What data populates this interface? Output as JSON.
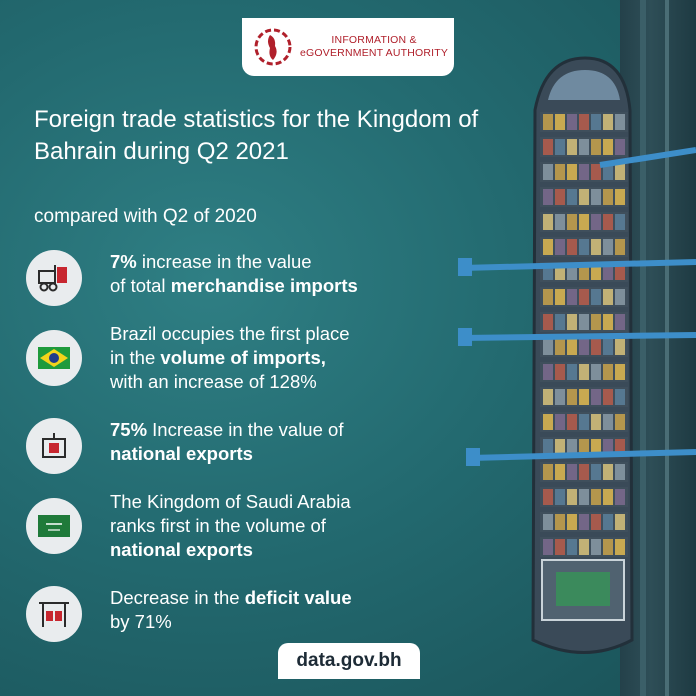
{
  "logo": {
    "line1": "INFORMATION &",
    "line2": "eGOVERNMENT AUTHORITY",
    "icon": "bahrain-map-logo"
  },
  "title": "Foreign trade statistics for the Kingdom of Bahrain during Q2 2021",
  "subtitle": "compared with Q2 of 2020",
  "items": [
    {
      "icon": "forklift-icon",
      "lines": [
        [
          {
            "t": "7%",
            "b": true
          },
          {
            "t": " increase in the value",
            "b": false
          }
        ],
        [
          {
            "t": "of total ",
            "b": false
          },
          {
            "t": "merchandise imports",
            "b": true
          }
        ]
      ]
    },
    {
      "icon": "brazil-flag-icon",
      "lines": [
        [
          {
            "t": "Brazil occupies the first place",
            "b": false
          }
        ],
        [
          {
            "t": "in the ",
            "b": false
          },
          {
            "t": "volume of imports,",
            "b": true
          }
        ],
        [
          {
            "t": "with an increase of 128%",
            "b": false
          }
        ]
      ]
    },
    {
      "icon": "export-container-icon",
      "lines": [
        [
          {
            "t": "75%",
            "b": true
          },
          {
            "t": " Increase in the value of",
            "b": false
          }
        ],
        [
          {
            "t": "national exports",
            "b": true
          }
        ]
      ]
    },
    {
      "icon": "saudi-flag-icon",
      "lines": [
        [
          {
            "t": "The Kingdom of Saudi Arabia",
            "b": false
          }
        ],
        [
          {
            "t": "ranks first in the volume of",
            "b": false
          }
        ],
        [
          {
            "t": "national exports",
            "b": true
          }
        ]
      ]
    },
    {
      "icon": "crane-containers-icon",
      "lines": [
        [
          {
            "t": "Decrease in the ",
            "b": false
          },
          {
            "t": "deficit value",
            "b": true
          }
        ],
        [
          {
            "t": "by 71%",
            "b": false
          }
        ]
      ]
    }
  ],
  "footer": "data.gov.bh",
  "colors": {
    "background": "#236a70",
    "accent": "#b0202b",
    "text": "#ffffff"
  }
}
